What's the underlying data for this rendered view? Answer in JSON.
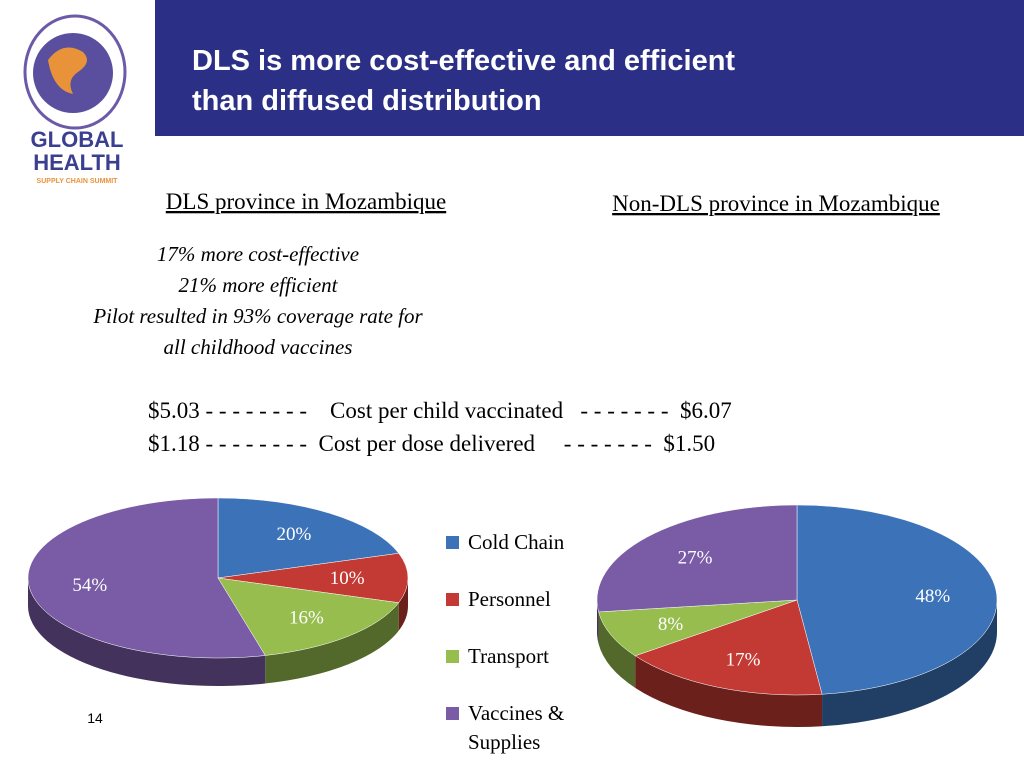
{
  "slide": {
    "title_lines": [
      "DLS is more cost-effective and efficient",
      "than diffused distribution"
    ],
    "logo": {
      "line1": "GLOBAL",
      "line2": "HEALTH",
      "line3": "SUPPLY CHAIN SUMMIT"
    },
    "notes": [
      "17% more cost-effective",
      "21% more efficient",
      "Pilot resulted in 93% coverage rate for",
      "all childhood vaccines"
    ],
    "cost_lines": [
      "$5.03 - - - - - - - -    Cost per child vaccinated   - - - - - - -  $6.07",
      "$1.18 - - - - - - - -  Cost per dose delivered     - - - - - - -  $1.50"
    ],
    "page_number": "14"
  },
  "chart_data": [
    {
      "type": "pie",
      "title": "DLS province in Mozambique",
      "categories": [
        "Cold Chain",
        "Personnel",
        "Transport",
        "Vaccines & Supplies"
      ],
      "values": [
        20,
        10,
        16,
        54
      ],
      "value_labels": [
        "20%",
        "10%",
        "16%",
        "54%"
      ],
      "colors": [
        "#3c72b8",
        "#c23a33",
        "#97bd4f",
        "#7a5ba6"
      ],
      "legend": "right"
    },
    {
      "type": "pie",
      "title": "Non-DLS province in Mozambique",
      "categories": [
        "Cold Chain",
        "Personnel",
        "Transport",
        "Vaccines & Supplies"
      ],
      "values": [
        48,
        17,
        8,
        27
      ],
      "value_labels": [
        "48%",
        "17%",
        "8%",
        "27%"
      ],
      "colors": [
        "#3c72b8",
        "#c23a33",
        "#97bd4f",
        "#7a5ba6"
      ]
    }
  ]
}
